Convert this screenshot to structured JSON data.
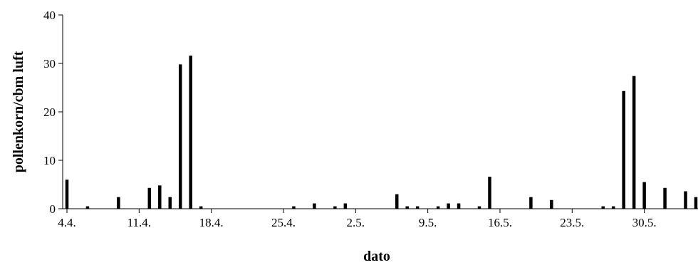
{
  "chart_data": {
    "type": "bar",
    "title": "",
    "xlabel": "dato",
    "ylabel": "pollenkorn/cbm luft",
    "ylim": [
      0,
      40
    ],
    "yticks": [
      0,
      10,
      20,
      30,
      40
    ],
    "xlim": [
      "2024-04-04",
      "2024-06-04"
    ],
    "xticks": [
      {
        "date": "2024-04-04",
        "label": "4.4."
      },
      {
        "date": "2024-04-11",
        "label": "11.4."
      },
      {
        "date": "2024-04-18",
        "label": "18.4."
      },
      {
        "date": "2024-04-25",
        "label": "25.4."
      },
      {
        "date": "2024-05-02",
        "label": "2.5."
      },
      {
        "date": "2024-05-09",
        "label": "9.5."
      },
      {
        "date": "2024-05-16",
        "label": "16.5."
      },
      {
        "date": "2024-05-23",
        "label": "23.5."
      },
      {
        "date": "2024-05-30",
        "label": "30.5."
      }
    ],
    "grid": false,
    "legend": "none",
    "bar_color": "#000000",
    "x": [
      "2024-04-04",
      "2024-04-06",
      "2024-04-09",
      "2024-04-12",
      "2024-04-13",
      "2024-04-14",
      "2024-04-15",
      "2024-04-16",
      "2024-04-17",
      "2024-04-26",
      "2024-04-28",
      "2024-04-30",
      "2024-05-01",
      "2024-05-06",
      "2024-05-07",
      "2024-05-08",
      "2024-05-10",
      "2024-05-11",
      "2024-05-12",
      "2024-05-14",
      "2024-05-15",
      "2024-05-19",
      "2024-05-21",
      "2024-05-26",
      "2024-05-27",
      "2024-05-28",
      "2024-05-29",
      "2024-05-30",
      "2024-06-01",
      "2024-06-03",
      "2024-06-04"
    ],
    "values": [
      6.0,
      0.5,
      2.4,
      4.3,
      4.8,
      2.4,
      29.8,
      31.6,
      0.5,
      0.5,
      1.1,
      0.5,
      1.1,
      3.0,
      0.5,
      0.5,
      0.5,
      1.1,
      1.1,
      0.5,
      6.6,
      2.4,
      1.8,
      0.5,
      0.5,
      24.3,
      27.4,
      5.5,
      4.3,
      3.6,
      2.4
    ]
  }
}
